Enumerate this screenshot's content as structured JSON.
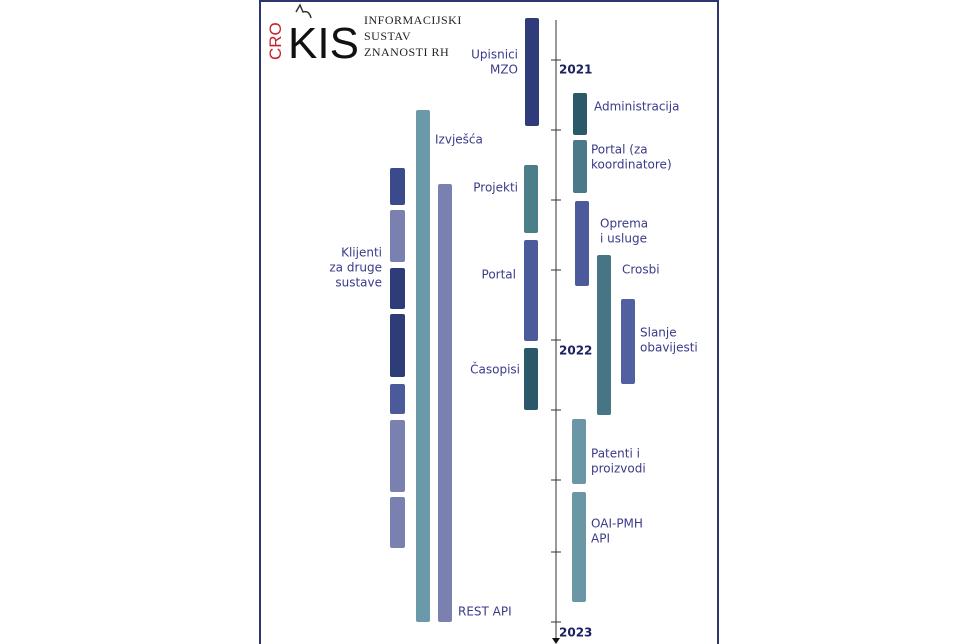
{
  "logo": {
    "prefix": "CRO",
    "name": "KIS",
    "lines": [
      "INFORMACIJSKI",
      "SUSTAV",
      "ZNANOSTI RH"
    ]
  },
  "years": [
    "2021",
    "2022",
    "2023"
  ],
  "items": [
    {
      "lines": [
        "Upisnici",
        "MZO"
      ]
    },
    {
      "lines": [
        "Administracija"
      ]
    },
    {
      "lines": [
        "Portal (za",
        "koordinatore)"
      ]
    },
    {
      "lines": [
        "Projekti"
      ]
    },
    {
      "lines": [
        "Oprema",
        "i usluge"
      ]
    },
    {
      "lines": [
        "Portal"
      ]
    },
    {
      "lines": [
        "Crosbi"
      ]
    },
    {
      "lines": [
        "Slanje",
        "obavijesti"
      ]
    },
    {
      "lines": [
        "Časopisi"
      ]
    },
    {
      "lines": [
        "Patenti i",
        "proizvodi"
      ]
    },
    {
      "lines": [
        "OAI-PMH",
        "API"
      ]
    },
    {
      "lines": [
        "Izvješća"
      ]
    },
    {
      "lines": [
        "REST API"
      ]
    },
    {
      "lines": [
        "Klijenti",
        "za druge",
        "sustave"
      ]
    }
  ]
}
